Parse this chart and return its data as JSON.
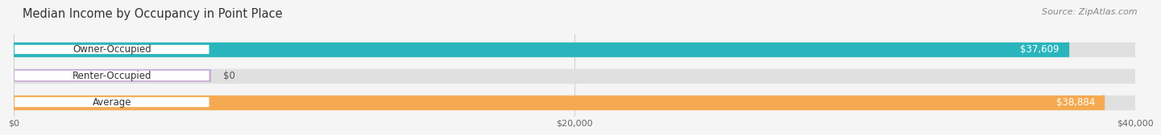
{
  "title": "Median Income by Occupancy in Point Place",
  "source": "Source: ZipAtlas.com",
  "categories": [
    "Owner-Occupied",
    "Renter-Occupied",
    "Average"
  ],
  "values": [
    37609,
    0,
    38884
  ],
  "bar_colors": [
    "#2ab5bc",
    "#c9aad4",
    "#f5aa52"
  ],
  "value_labels": [
    "$37,609",
    "$0",
    "$38,884"
  ],
  "xlim": [
    0,
    40000
  ],
  "xticks": [
    0,
    20000,
    40000
  ],
  "xtick_labels": [
    "$0",
    "$20,000",
    "$40,000"
  ],
  "background_color": "#f5f5f5",
  "bar_bg_color": "#e0e0e0",
  "bar_height": 0.52,
  "title_fontsize": 10.5,
  "source_fontsize": 8,
  "label_fontsize": 8.5,
  "value_fontsize": 8.5,
  "tick_fontsize": 8
}
